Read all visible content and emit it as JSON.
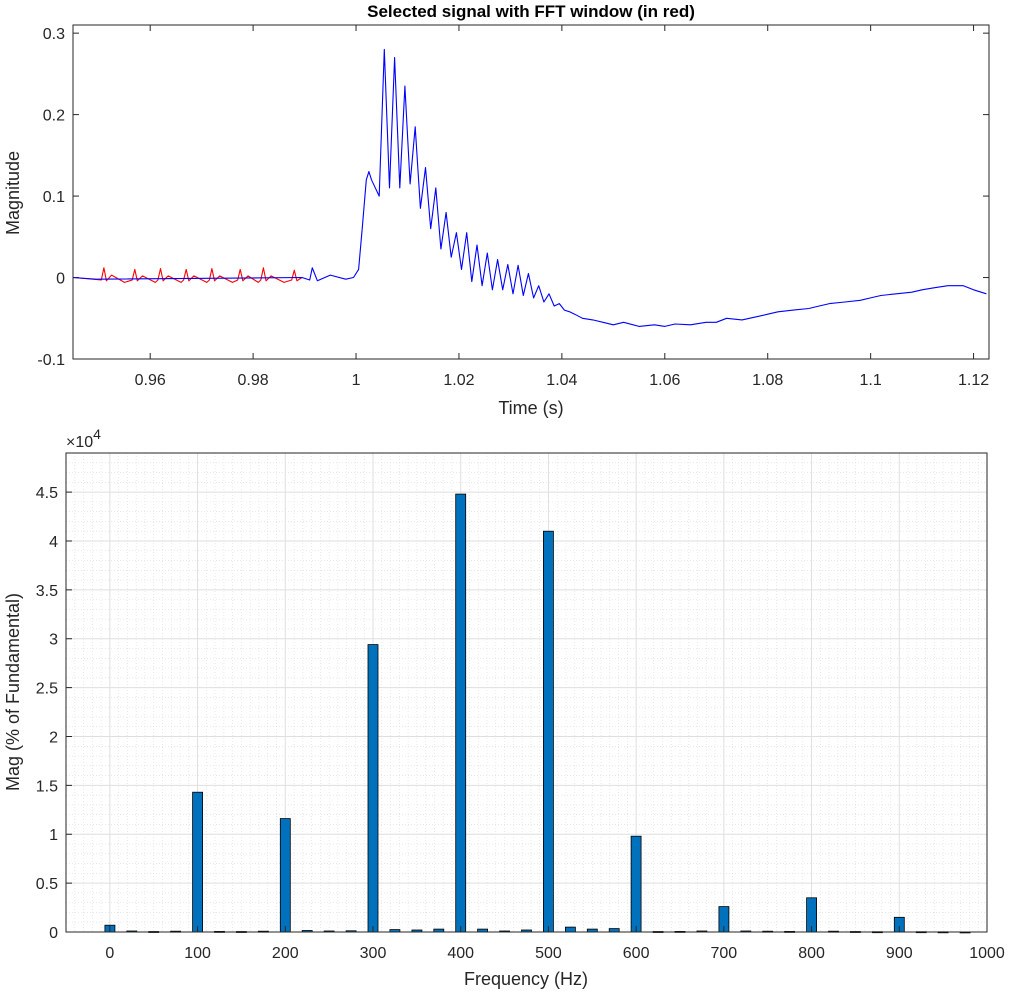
{
  "chart_data": [
    {
      "type": "line",
      "title": "Selected signal with FFT window (in red)",
      "xlabel": "Time (s)",
      "ylabel": "Magnitude",
      "xlim": [
        0.945,
        1.123
      ],
      "ylim": [
        -0.1,
        0.31
      ],
      "xticks": [
        0.96,
        0.98,
        1,
        1.02,
        1.04,
        1.06,
        1.08,
        1.1,
        1.12
      ],
      "xtick_labels": [
        "0.96",
        "0.98",
        "1",
        "1.02",
        "1.04",
        "1.06",
        "1.08",
        "1.1",
        "1.12"
      ],
      "yticks": [
        -0.1,
        0,
        0.1,
        0.2,
        0.3
      ],
      "ytick_labels": [
        "-0.1",
        "0",
        "0.1",
        "0.2",
        "0.3"
      ],
      "grid": false,
      "series": [
        {
          "color": "#ff0000",
          "x": [
            0.945,
            0.9505,
            0.951,
            0.9515,
            0.9525,
            0.955,
            0.9565,
            0.957,
            0.9575,
            0.9585,
            0.961,
            0.9615,
            0.962,
            0.9625,
            0.9635,
            0.966,
            0.9665,
            0.967,
            0.9675,
            0.9685,
            0.971,
            0.9715,
            0.972,
            0.9725,
            0.9735,
            0.976,
            0.977,
            0.9775,
            0.978,
            0.979,
            0.981,
            0.9815,
            0.982,
            0.9825,
            0.9835,
            0.986,
            0.9875,
            0.988,
            0.9885,
            0.9895
          ],
          "y": [
            0.0,
            -0.003,
            0.012,
            -0.004,
            0.003,
            -0.006,
            -0.003,
            0.01,
            -0.004,
            0.002,
            -0.006,
            -0.003,
            0.011,
            -0.004,
            0.002,
            -0.006,
            -0.003,
            0.01,
            -0.004,
            0.002,
            -0.006,
            -0.003,
            0.011,
            -0.004,
            0.002,
            -0.006,
            -0.003,
            0.01,
            -0.004,
            0.002,
            -0.006,
            -0.003,
            0.012,
            -0.004,
            0.002,
            -0.006,
            -0.003,
            0.009,
            -0.004,
            0.0
          ]
        },
        {
          "color": "#0000ff",
          "x": [
            0.945,
            0.9495,
            0.9895,
            0.991,
            0.9915,
            0.9925,
            0.995,
            0.998,
            0.9995,
            1.0005,
            1.0012,
            1.002,
            1.0025,
            1.003,
            1.0045,
            1.0055,
            1.0065,
            1.0075,
            1.0085,
            1.0095,
            1.0105,
            1.0115,
            1.0125,
            1.0135,
            1.0145,
            1.0155,
            1.0165,
            1.0175,
            1.0185,
            1.0195,
            1.0205,
            1.0215,
            1.0225,
            1.0235,
            1.0245,
            1.0255,
            1.0265,
            1.0275,
            1.0285,
            1.0295,
            1.0305,
            1.0315,
            1.0325,
            1.0335,
            1.0345,
            1.0355,
            1.0365,
            1.0375,
            1.0385,
            1.0395,
            1.0405,
            1.0415,
            1.0425,
            1.044,
            1.046,
            1.048,
            1.05,
            1.052,
            1.055,
            1.058,
            1.06,
            1.062,
            1.065,
            1.068,
            1.07,
            1.072,
            1.075,
            1.078,
            1.08,
            1.082,
            1.085,
            1.088,
            1.09,
            1.092,
            1.095,
            1.098,
            1.1,
            1.102,
            1.105,
            1.108,
            1.11,
            1.112,
            1.115,
            1.118,
            1.12,
            1.1225
          ],
          "y": [
            0.0,
            -0.002,
            0.0,
            -0.003,
            0.012,
            -0.004,
            0.003,
            -0.002,
            0.0,
            0.01,
            0.06,
            0.12,
            0.13,
            0.12,
            0.1,
            0.28,
            0.11,
            0.27,
            0.11,
            0.235,
            0.115,
            0.185,
            0.085,
            0.135,
            0.06,
            0.11,
            0.035,
            0.08,
            0.025,
            0.055,
            0.01,
            0.055,
            -0.005,
            0.04,
            -0.01,
            0.03,
            -0.015,
            0.022,
            -0.015,
            0.016,
            -0.02,
            0.015,
            -0.022,
            0.005,
            -0.025,
            -0.01,
            -0.03,
            -0.02,
            -0.035,
            -0.032,
            -0.04,
            -0.042,
            -0.045,
            -0.05,
            -0.052,
            -0.055,
            -0.058,
            -0.055,
            -0.06,
            -0.058,
            -0.06,
            -0.057,
            -0.058,
            -0.055,
            -0.055,
            -0.05,
            -0.052,
            -0.048,
            -0.045,
            -0.042,
            -0.04,
            -0.038,
            -0.035,
            -0.032,
            -0.03,
            -0.028,
            -0.025,
            -0.022,
            -0.02,
            -0.018,
            -0.015,
            -0.013,
            -0.01,
            -0.01,
            -0.015,
            -0.02
          ]
        }
      ]
    },
    {
      "type": "bar",
      "xlabel": "Frequency (Hz)",
      "ylabel": "Mag (% of Fundamental)",
      "multiplier_label": "×10",
      "multiplier_exponent": "4",
      "xlim": [
        -50,
        1000
      ],
      "ylim": [
        0,
        49000
      ],
      "xticks": [
        0,
        100,
        200,
        300,
        400,
        500,
        600,
        700,
        800,
        900,
        1000
      ],
      "xtick_labels": [
        "0",
        "100",
        "200",
        "300",
        "400",
        "500",
        "600",
        "700",
        "800",
        "900",
        "1000"
      ],
      "yticks": [
        0,
        5000,
        10000,
        15000,
        20000,
        25000,
        30000,
        35000,
        40000,
        45000
      ],
      "ytick_labels": [
        "0",
        "0.5",
        "1",
        "1.5",
        "2",
        "2.5",
        "3",
        "3.5",
        "4",
        "4.5"
      ],
      "grid": true,
      "minor_grid": true,
      "bar_color": "#0072bd",
      "x": [
        0,
        25,
        50,
        75,
        100,
        125,
        150,
        175,
        200,
        225,
        250,
        275,
        300,
        325,
        350,
        375,
        400,
        425,
        450,
        475,
        500,
        525,
        550,
        575,
        600,
        625,
        650,
        675,
        700,
        725,
        750,
        775,
        800,
        825,
        850,
        875,
        900,
        925,
        950,
        975
      ],
      "values": [
        700,
        100,
        50,
        80,
        14300,
        60,
        50,
        80,
        11600,
        150,
        100,
        120,
        29400,
        250,
        200,
        300,
        44800,
        300,
        100,
        200,
        41000,
        500,
        300,
        350,
        9800,
        50,
        60,
        100,
        2600,
        100,
        80,
        60,
        3500,
        80,
        50,
        30,
        1500,
        30,
        20,
        10
      ]
    }
  ]
}
